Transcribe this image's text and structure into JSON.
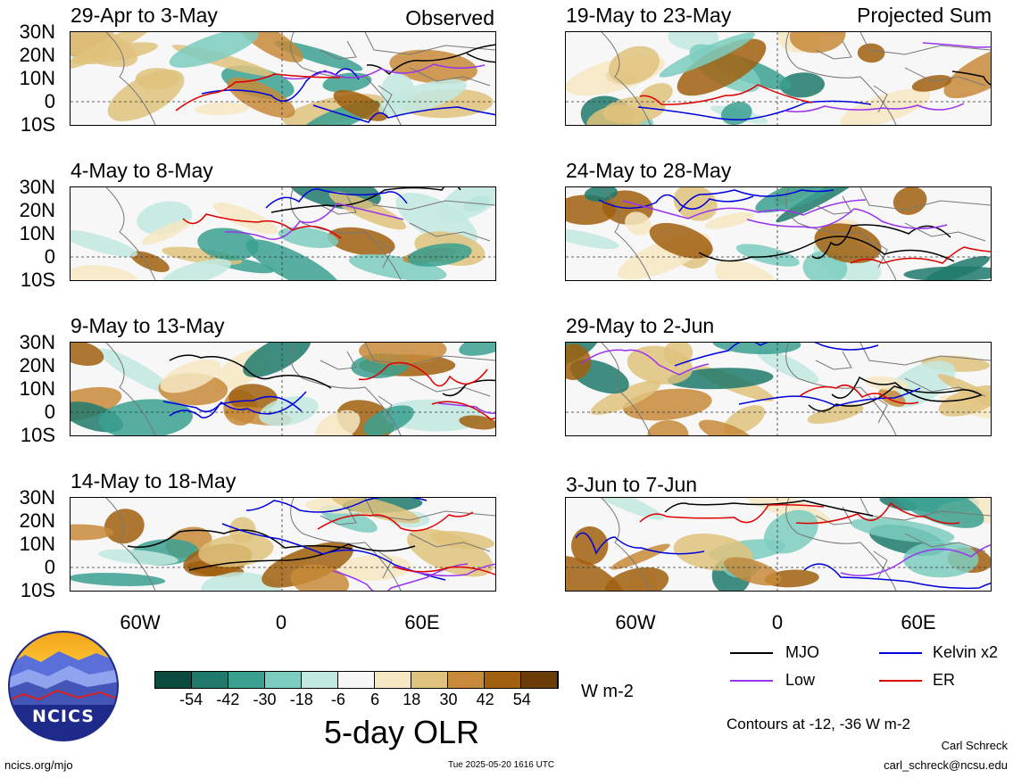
{
  "header": {
    "left_label": "Observed",
    "right_label": "Projected Sum"
  },
  "panels": [
    {
      "title": "29-Apr to 3-May",
      "seed": 11
    },
    {
      "title": "4-May to 8-May",
      "seed": 23
    },
    {
      "title": "9-May to 13-May",
      "seed": 37
    },
    {
      "title": "14-May to 18-May",
      "seed": 41
    },
    {
      "title": "19-May to 23-May",
      "seed": 53
    },
    {
      "title": "24-May to 28-May",
      "seed": 67
    },
    {
      "title": "29-May to 2-Jun",
      "seed": 71
    },
    {
      "title": "3-Jun to 7-Jun",
      "seed": 89
    }
  ],
  "lat_labels": [
    "30N",
    "20N",
    "10N",
    "0",
    "10S"
  ],
  "lon_labels": [
    "60W",
    "0",
    "60E"
  ],
  "colorbar": {
    "colors": [
      "#0b4a3e",
      "#1f7a6c",
      "#3aa090",
      "#7ccdbf",
      "#c2e9e0",
      "#f7f7f7",
      "#f6e8c3",
      "#dfc27d",
      "#c78a3a",
      "#a0600f",
      "#6b3c07"
    ],
    "ticks": [
      "-54",
      "-42",
      "-30",
      "-18",
      "-6",
      "6",
      "18",
      "30",
      "42",
      "54"
    ],
    "units": "W m-2",
    "title": "5-day OLR"
  },
  "legend": {
    "items": [
      {
        "label": "MJO",
        "color": "#000000"
      },
      {
        "label": "Kelvin x2",
        "color": "#0000dd"
      },
      {
        "label": "Low",
        "color": "#9933ee"
      },
      {
        "label": "ER",
        "color": "#dd0000"
      }
    ],
    "note": "Contours at -12, -36 W m-2"
  },
  "logo": {
    "text": "NCICS"
  },
  "footer": {
    "website": "ncics.org/mjo",
    "timestamp": "Tue 2025-05-20 1616 UTC",
    "author": "Carl Schreck",
    "email": "carl_schreck@ncsu.edu"
  }
}
